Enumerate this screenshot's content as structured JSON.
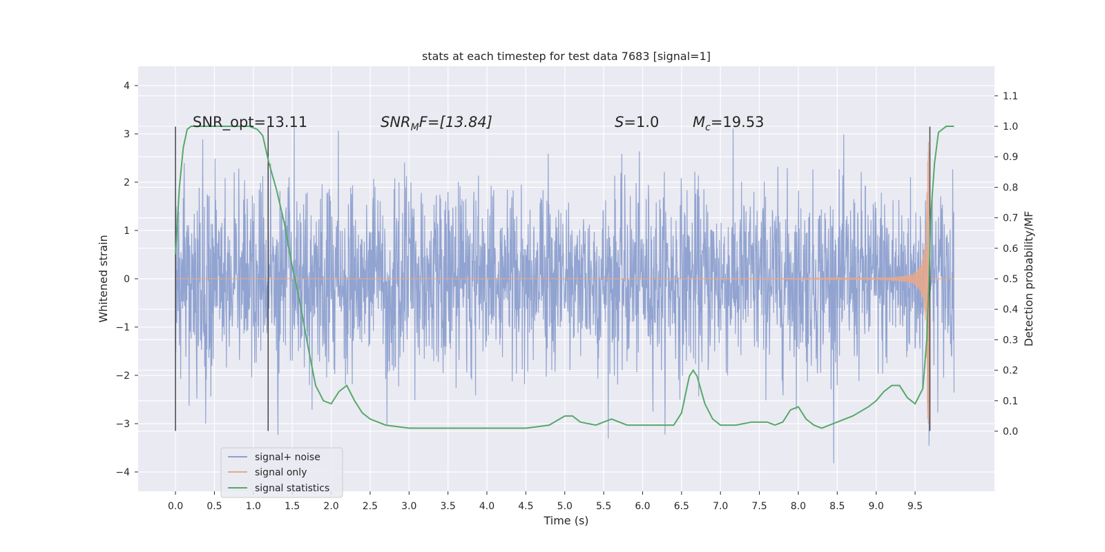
{
  "chart_data": {
    "type": "line",
    "title": "stats at each timestep for test data 7683 [signal=1]",
    "xlabel": "Time (s)",
    "ylabel": "Whitened strain",
    "ylabel_right": "Detection probability/MF",
    "xlim": [
      -0.48,
      10.52
    ],
    "ylim": [
      -4.4,
      4.4
    ],
    "ylim_right": [
      -0.197,
      1.197
    ],
    "x_ticks": [
      "0.0",
      "0.5",
      "1.0",
      "1.5",
      "2.0",
      "2.5",
      "3.0",
      "3.5",
      "4.0",
      "4.5",
      "5.0",
      "5.5",
      "6.0",
      "6.5",
      "7.0",
      "7.5",
      "8.0",
      "8.5",
      "9.0",
      "9.5"
    ],
    "y_ticks": [
      "4",
      "3",
      "2",
      "1",
      "0",
      "−1",
      "−2",
      "−3",
      "−4"
    ],
    "y_ticks_right": [
      "0.0",
      "0.1",
      "0.2",
      "0.3",
      "0.4",
      "0.5",
      "0.6",
      "0.7",
      "0.8",
      "0.9",
      "1.0",
      "1.1"
    ],
    "grid": true,
    "legend_position": "lower-left",
    "annotations": {
      "snr_opt": "SNR_opt=13.11",
      "snr_mf_base": "SNR",
      "snr_mf_sub": "M",
      "snr_mf_rest": "F=[13.84]",
      "s_label": "S",
      "s_rest": "=1.0",
      "mc_base": "M",
      "mc_sub": "c",
      "mc_rest": "=19.53"
    },
    "vlines": [
      0.0,
      1.19,
      9.69
    ],
    "series": [
      {
        "name": "signal+ noise",
        "color": "#8c9fcd",
        "x_range": [
          0.0,
          10.0
        ],
        "description": "whitened noisy strain, envelope roughly ±2.5 with spikes to ±4"
      },
      {
        "name": "signal only",
        "color": "#e6a98c",
        "x_range": [
          0.0,
          10.0
        ],
        "description": "chirp waveform growing from 0 to about ±3 near t=9.68 s"
      },
      {
        "name": "signal statistics",
        "color": "#55a868",
        "axis": "right",
        "x": [
          0.0,
          0.05,
          0.1,
          0.15,
          0.2,
          0.3,
          0.5,
          0.8,
          0.95,
          1.05,
          1.12,
          1.2,
          1.3,
          1.4,
          1.5,
          1.6,
          1.7,
          1.8,
          1.9,
          2.0,
          2.1,
          2.2,
          2.3,
          2.4,
          2.5,
          2.7,
          3.0,
          3.5,
          4.0,
          4.5,
          4.8,
          5.0,
          5.1,
          5.2,
          5.4,
          5.6,
          5.8,
          6.0,
          6.2,
          6.4,
          6.5,
          6.6,
          6.65,
          6.7,
          6.8,
          6.9,
          7.0,
          7.1,
          7.2,
          7.4,
          7.6,
          7.7,
          7.8,
          7.9,
          8.0,
          8.1,
          8.2,
          8.3,
          8.5,
          8.7,
          8.9,
          9.0,
          9.1,
          9.2,
          9.3,
          9.4,
          9.5,
          9.6,
          9.65,
          9.68,
          9.7,
          9.75,
          9.8,
          9.9,
          10.0
        ],
        "values": [
          0.58,
          0.8,
          0.93,
          0.99,
          1.0,
          1.0,
          1.0,
          1.0,
          1.0,
          0.99,
          0.97,
          0.88,
          0.79,
          0.68,
          0.54,
          0.42,
          0.28,
          0.15,
          0.1,
          0.09,
          0.13,
          0.15,
          0.1,
          0.06,
          0.04,
          0.02,
          0.01,
          0.01,
          0.01,
          0.01,
          0.02,
          0.05,
          0.05,
          0.03,
          0.02,
          0.04,
          0.02,
          0.02,
          0.02,
          0.02,
          0.06,
          0.18,
          0.2,
          0.18,
          0.09,
          0.04,
          0.02,
          0.02,
          0.02,
          0.03,
          0.03,
          0.02,
          0.03,
          0.07,
          0.08,
          0.04,
          0.02,
          0.01,
          0.03,
          0.05,
          0.08,
          0.1,
          0.13,
          0.15,
          0.15,
          0.11,
          0.09,
          0.14,
          0.3,
          0.5,
          0.7,
          0.88,
          0.98,
          1.0,
          1.0
        ]
      }
    ]
  }
}
